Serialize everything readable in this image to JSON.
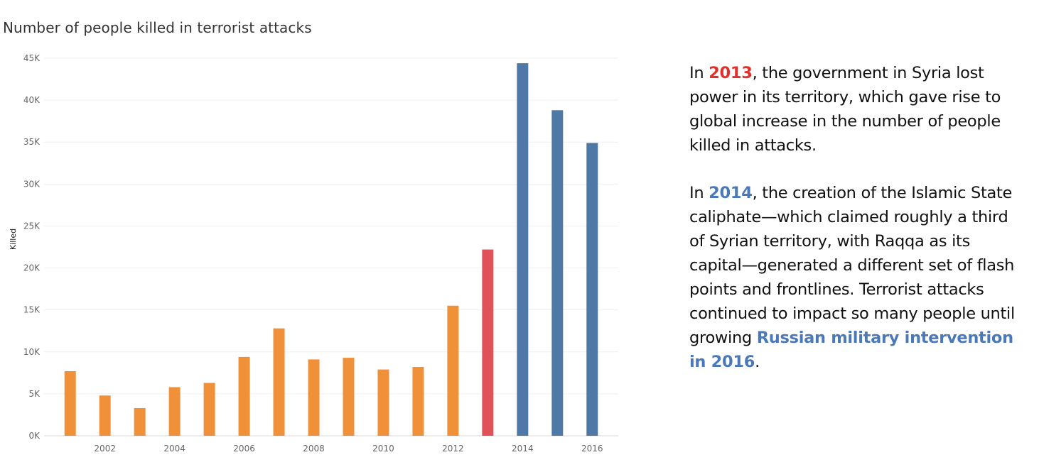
{
  "colors": {
    "orange": "#f0913a",
    "red": "#e0525a",
    "blue": "#4e79a7",
    "text_red": "#e0302b",
    "text_blue": "#4a78b8"
  },
  "chart_data": {
    "type": "bar",
    "title": "Number of people killed in terrorist attacks",
    "xlabel": "",
    "ylabel": "Killed",
    "ylim": [
      0,
      45000
    ],
    "y_ticks": [
      0,
      5000,
      10000,
      15000,
      20000,
      25000,
      30000,
      35000,
      40000,
      45000
    ],
    "y_tick_labels": [
      "0K",
      "5K",
      "10K",
      "15K",
      "20K",
      "25K",
      "30K",
      "35K",
      "40K",
      "45K"
    ],
    "x_tick_labels": [
      "2002",
      "2004",
      "2006",
      "2008",
      "2010",
      "2012",
      "2014",
      "2016"
    ],
    "grid": true,
    "categories": [
      "2001",
      "2002",
      "2003",
      "2004",
      "2005",
      "2006",
      "2007",
      "2008",
      "2009",
      "2010",
      "2011",
      "2012",
      "2013",
      "2014",
      "2015",
      "2016"
    ],
    "values": [
      7700,
      4800,
      3300,
      5800,
      6300,
      9400,
      12800,
      9100,
      9300,
      7900,
      8200,
      15500,
      22200,
      44400,
      38800,
      34900
    ],
    "bar_colors": [
      "orange",
      "orange",
      "orange",
      "orange",
      "orange",
      "orange",
      "orange",
      "orange",
      "orange",
      "orange",
      "orange",
      "orange",
      "red",
      "blue",
      "blue",
      "blue"
    ]
  },
  "annotation": {
    "p1": {
      "prefix": "In ",
      "highlight": "2013",
      "rest": ", the government in Syria lost power in its territory, which gave rise to global increase in the number of people killed in attacks."
    },
    "p2": {
      "prefix": "In ",
      "highlight": "2014",
      "rest": ", the creation of the Islamic State caliphate—which claimed roughly a third of Syrian territory, with Raqqa as its capital—generated a different set of flash points and frontlines. Terrorist attacks continued to impact so many people until growing ",
      "highlight2": "Russian military intervention in 2016",
      "suffix": "."
    }
  }
}
